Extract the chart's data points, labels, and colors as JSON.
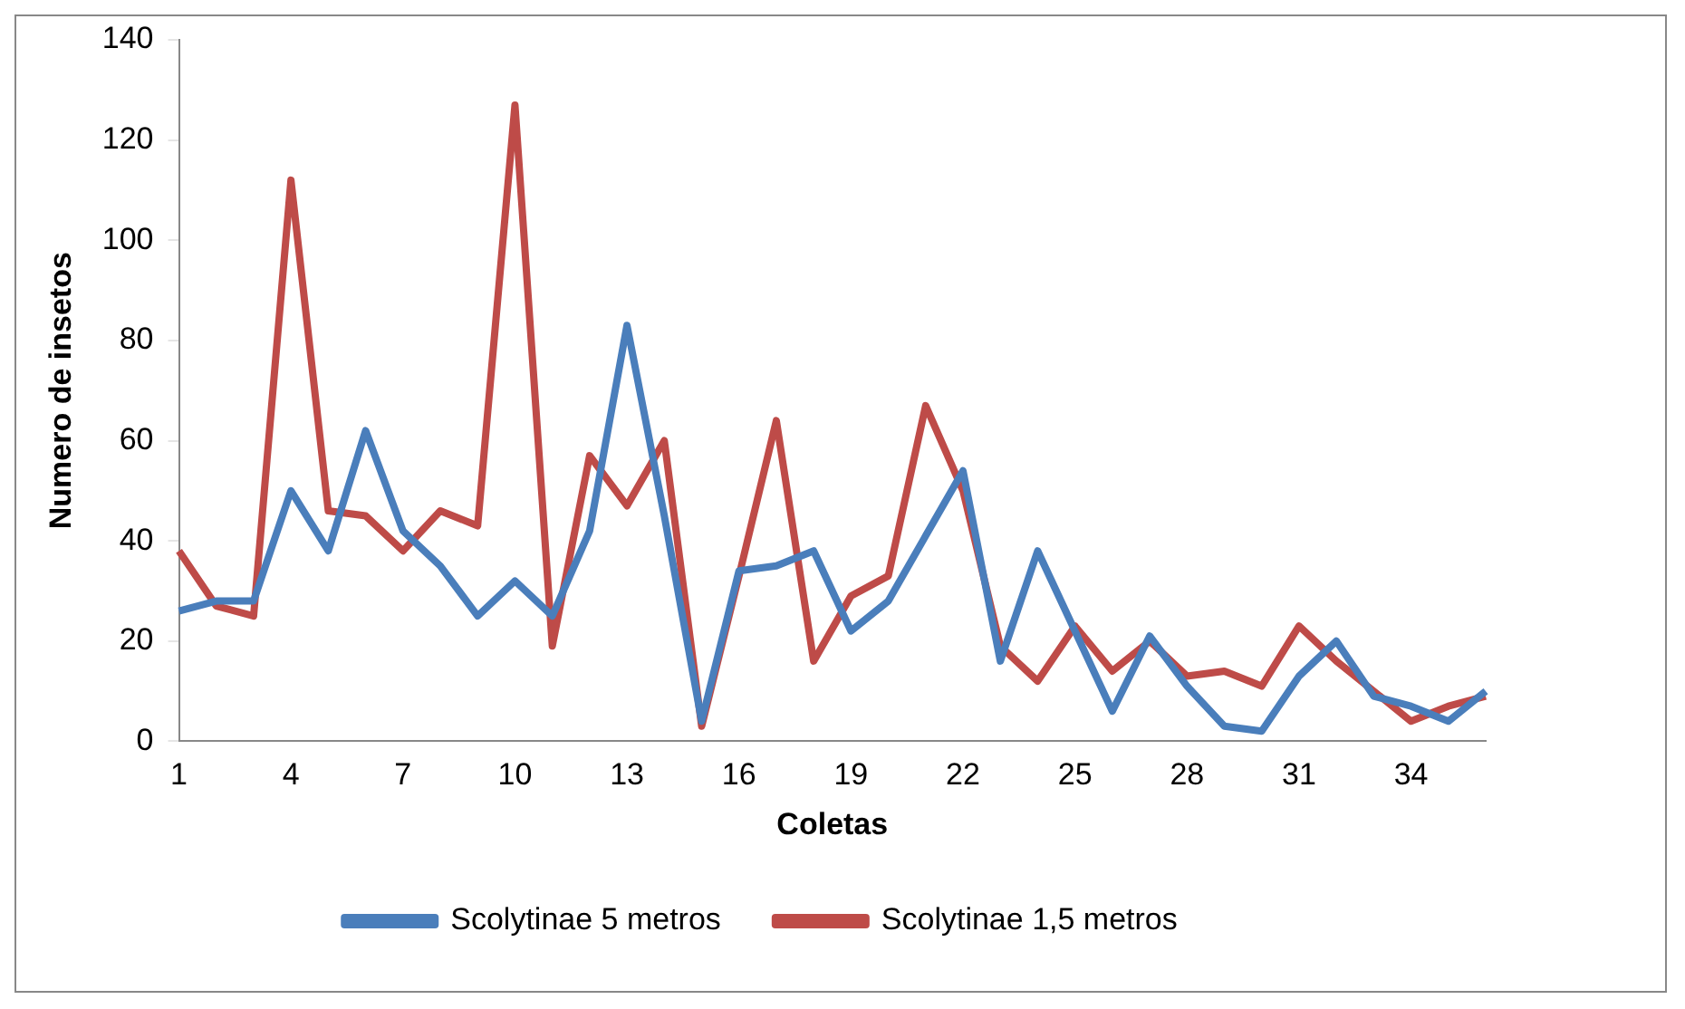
{
  "chart_data": {
    "type": "line",
    "xlabel": "Coletas",
    "ylabel": "Numero de insetos",
    "categories": [
      "1",
      null,
      null,
      "4",
      null,
      null,
      "7",
      null,
      null,
      "10",
      null,
      null,
      "13",
      null,
      null,
      "16",
      null,
      null,
      "19",
      null,
      null,
      "22",
      null,
      null,
      "25",
      null,
      null,
      "28",
      null,
      null,
      "31",
      null,
      null,
      "34",
      null,
      null
    ],
    "series": [
      {
        "name": "Scolytinae 5 metros",
        "color": "#4a7ebb",
        "values": [
          26,
          28,
          28,
          50,
          38,
          62,
          42,
          35,
          25,
          32,
          25,
          42,
          83,
          45,
          4,
          34,
          35,
          38,
          22,
          28,
          41,
          54,
          16,
          38,
          22,
          6,
          21,
          11,
          3,
          2,
          13,
          20,
          9,
          7,
          4,
          10
        ]
      },
      {
        "name": "Scolytinae 1,5 metros",
        "color": "#be4b48",
        "values": [
          38,
          27,
          25,
          112,
          46,
          45,
          38,
          46,
          43,
          127,
          19,
          57,
          47,
          60,
          3,
          33,
          64,
          16,
          29,
          33,
          67,
          50,
          19,
          12,
          23,
          14,
          20,
          13,
          14,
          11,
          23,
          16,
          10,
          4,
          7,
          9
        ]
      }
    ],
    "ylim": [
      0,
      140
    ],
    "yticks": [
      0,
      20,
      40,
      60,
      80,
      100,
      120,
      140
    ],
    "grid": false,
    "legend": "bottom",
    "marker": "none",
    "line_style": "solid"
  }
}
